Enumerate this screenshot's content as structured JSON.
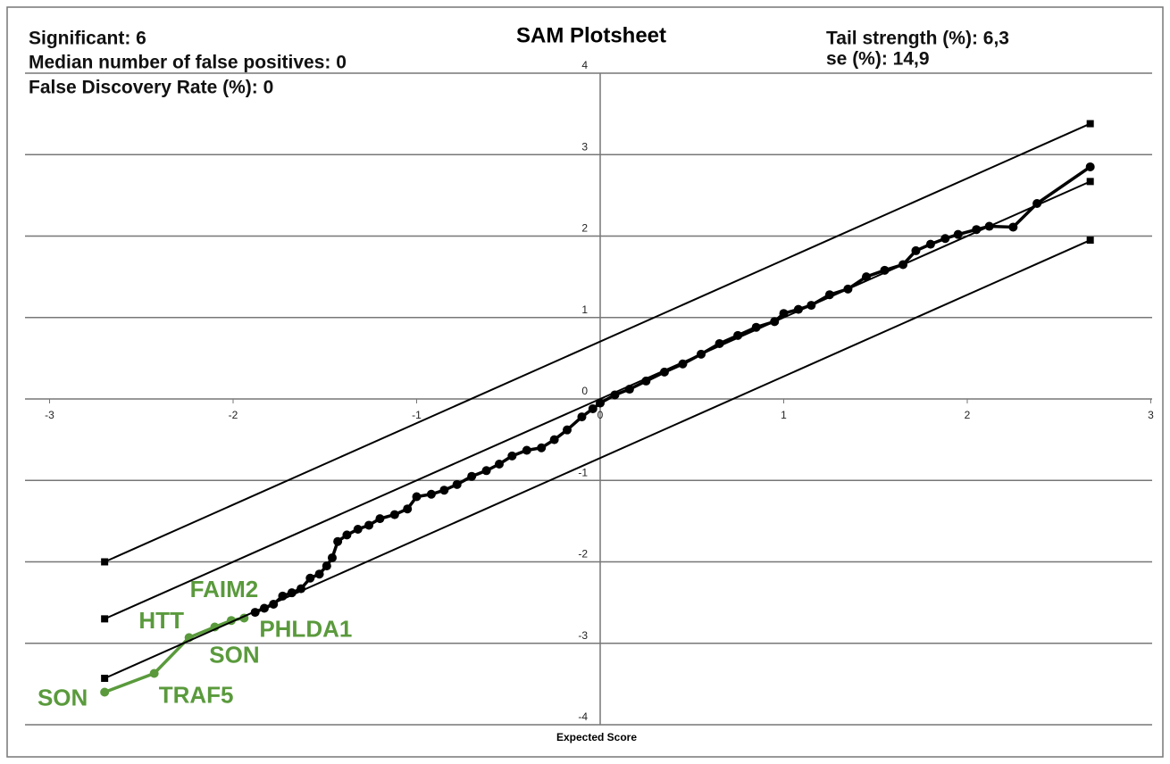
{
  "chart_data": {
    "type": "scatter",
    "title": "SAM Plotsheet",
    "annotations": [
      "Significant: 6",
      "Median number of false positives: 0",
      "False Discovery Rate (%): 0",
      "Tail strength (%): 6,3",
      "se (%): 14,9"
    ],
    "xlabel": "Expected Score",
    "xlim": [
      -3,
      3
    ],
    "ylim": [
      -4,
      4
    ],
    "xticks": [
      -3,
      -2,
      -1,
      0,
      1,
      2,
      3
    ],
    "yticks": [
      -4,
      -3,
      -2,
      -1,
      0,
      1,
      2,
      3,
      4
    ],
    "grid": true,
    "series": [
      {
        "color": "#000000",
        "marker": "circle",
        "x": [
          -1.88,
          -1.83,
          -1.78,
          -1.73,
          -1.68,
          -1.63,
          -1.58,
          -1.53,
          -1.49,
          -1.46,
          -1.43,
          -1.38,
          -1.32,
          -1.26,
          -1.2,
          -1.12,
          -1.05,
          -1.0,
          -0.92,
          -0.85,
          -0.78,
          -0.7,
          -0.62,
          -0.55,
          -0.48,
          -0.4,
          -0.32,
          -0.25,
          -0.18,
          -0.1,
          -0.04,
          0.0,
          0.08,
          0.16,
          0.25,
          0.35,
          0.45,
          0.55,
          0.65,
          0.75,
          0.85,
          0.95,
          1.0,
          1.08,
          1.15,
          1.25,
          1.35,
          1.45,
          1.55,
          1.65,
          1.72,
          1.8,
          1.88,
          1.95,
          2.05,
          2.12,
          2.25,
          2.38,
          2.67
        ],
        "values": [
          -2.62,
          -2.57,
          -2.52,
          -2.42,
          -2.38,
          -2.33,
          -2.2,
          -2.15,
          -2.05,
          -1.95,
          -1.75,
          -1.67,
          -1.6,
          -1.55,
          -1.47,
          -1.42,
          -1.35,
          -1.2,
          -1.17,
          -1.12,
          -1.05,
          -0.95,
          -0.88,
          -0.8,
          -0.7,
          -0.63,
          -0.6,
          -0.5,
          -0.38,
          -0.22,
          -0.12,
          -0.05,
          0.05,
          0.12,
          0.22,
          0.33,
          0.43,
          0.55,
          0.68,
          0.78,
          0.88,
          0.95,
          1.05,
          1.1,
          1.15,
          1.28,
          1.35,
          1.5,
          1.58,
          1.65,
          1.82,
          1.9,
          1.97,
          2.02,
          2.08,
          2.12,
          2.11,
          2.4,
          2.85
        ]
      },
      {
        "color": "#5a9a3c",
        "marker": "circle",
        "x": [
          -2.7,
          -2.43,
          -2.24,
          -2.1,
          -2.01,
          -1.94
        ],
        "values": [
          -3.6,
          -3.37,
          -2.93,
          -2.8,
          -2.72,
          -2.69
        ],
        "labels": [
          "SON",
          "TRAF5",
          "HTT",
          "SON",
          "FAIM2",
          "PHLDA1"
        ]
      },
      {
        "color": "#000000",
        "marker": "square",
        "x": [
          -2.7,
          2.67
        ],
        "values": [
          -2.0,
          3.38
        ]
      },
      {
        "color": "#000000",
        "marker": "square",
        "x": [
          -2.7,
          2.67
        ],
        "values": [
          -2.7,
          2.67
        ]
      },
      {
        "color": "#000000",
        "marker": "square",
        "x": [
          -2.7,
          2.67
        ],
        "values": [
          -3.43,
          1.95
        ]
      }
    ]
  }
}
